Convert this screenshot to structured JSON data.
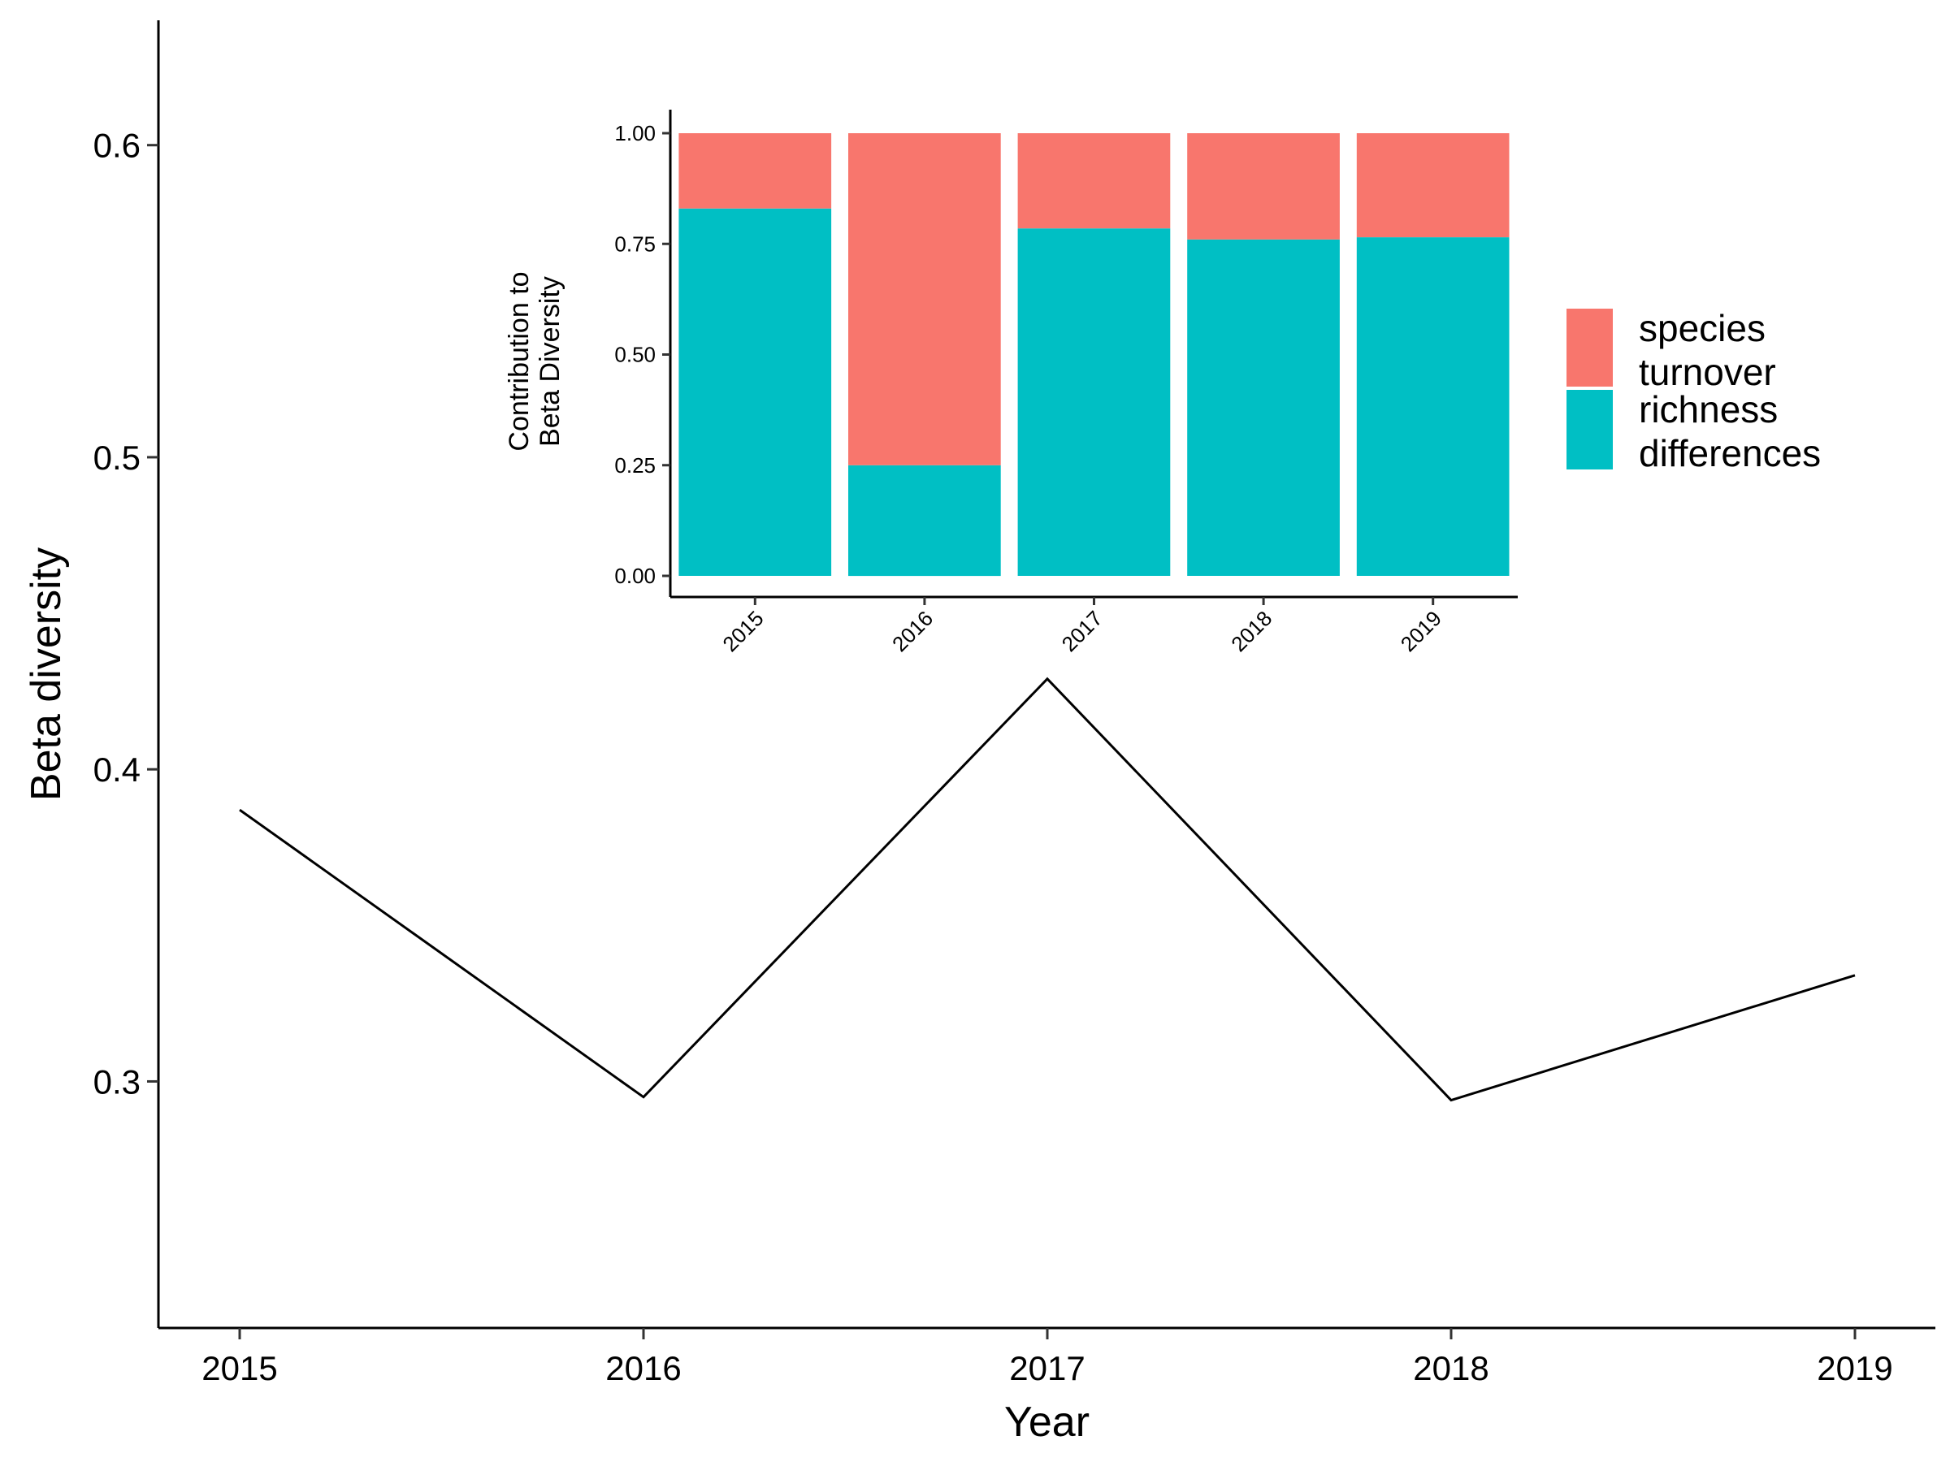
{
  "chart_data": [
    {
      "type": "line",
      "xlabel": "Year",
      "ylabel": "Beta diversity",
      "x": [
        "2015",
        "2016",
        "2017",
        "2018",
        "2019"
      ],
      "y": [
        0.387,
        0.295,
        0.429,
        0.294,
        0.334
      ],
      "ylim": [
        0.221,
        0.64
      ],
      "yticks": [
        "0.3",
        "0.4",
        "0.5",
        "0.6"
      ],
      "line_color": "#000000",
      "grid": false
    },
    {
      "type": "bar",
      "stacked": true,
      "ylabel_lines": [
        "Contribution to",
        "Beta Diversity"
      ],
      "categories": [
        "2015",
        "2016",
        "2017",
        "2018",
        "2019"
      ],
      "yticks": [
        "0.00",
        "0.25",
        "0.50",
        "0.75",
        "1.00"
      ],
      "ylim": [
        0,
        1.05
      ],
      "series": [
        {
          "name_lines": [
            "richness",
            "differences"
          ],
          "color": "#00BFC4",
          "values": [
            0.83,
            0.25,
            0.785,
            0.76,
            0.765
          ]
        },
        {
          "name_lines": [
            "species",
            "turnover"
          ],
          "color": "#F8766D",
          "values": [
            0.17,
            0.75,
            0.215,
            0.24,
            0.235
          ]
        }
      ],
      "legend_position": "right",
      "grid": false
    }
  ]
}
